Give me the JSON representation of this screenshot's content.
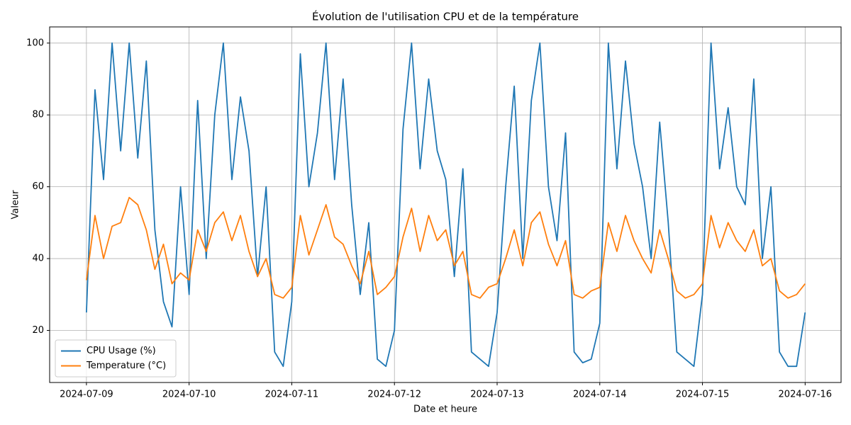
{
  "chart_data": {
    "type": "line",
    "title": "Évolution de l'utilisation CPU et de la température",
    "x_label": "Date et heure",
    "y_label": "Valeur",
    "x": [
      "2024-07-09T00:00",
      "2024-07-09T02:00",
      "2024-07-09T04:00",
      "2024-07-09T06:00",
      "2024-07-09T08:00",
      "2024-07-09T10:00",
      "2024-07-09T12:00",
      "2024-07-09T14:00",
      "2024-07-09T16:00",
      "2024-07-09T18:00",
      "2024-07-09T20:00",
      "2024-07-09T22:00",
      "2024-07-10T00:00",
      "2024-07-10T02:00",
      "2024-07-10T04:00",
      "2024-07-10T06:00",
      "2024-07-10T08:00",
      "2024-07-10T10:00",
      "2024-07-10T12:00",
      "2024-07-10T14:00",
      "2024-07-10T16:00",
      "2024-07-10T18:00",
      "2024-07-10T20:00",
      "2024-07-10T22:00",
      "2024-07-11T00:00",
      "2024-07-11T02:00",
      "2024-07-11T04:00",
      "2024-07-11T06:00",
      "2024-07-11T08:00",
      "2024-07-11T10:00",
      "2024-07-11T12:00",
      "2024-07-11T14:00",
      "2024-07-11T16:00",
      "2024-07-11T18:00",
      "2024-07-11T20:00",
      "2024-07-11T22:00",
      "2024-07-12T00:00",
      "2024-07-12T02:00",
      "2024-07-12T04:00",
      "2024-07-12T06:00",
      "2024-07-12T08:00",
      "2024-07-12T10:00",
      "2024-07-12T12:00",
      "2024-07-12T14:00",
      "2024-07-12T16:00",
      "2024-07-12T18:00",
      "2024-07-12T20:00",
      "2024-07-12T22:00",
      "2024-07-13T00:00",
      "2024-07-13T02:00",
      "2024-07-13T04:00",
      "2024-07-13T06:00",
      "2024-07-13T08:00",
      "2024-07-13T10:00",
      "2024-07-13T12:00",
      "2024-07-13T14:00",
      "2024-07-13T16:00",
      "2024-07-13T18:00",
      "2024-07-13T20:00",
      "2024-07-13T22:00",
      "2024-07-14T00:00",
      "2024-07-14T02:00",
      "2024-07-14T04:00",
      "2024-07-14T06:00",
      "2024-07-14T08:00",
      "2024-07-14T10:00",
      "2024-07-14T12:00",
      "2024-07-14T14:00",
      "2024-07-14T16:00",
      "2024-07-14T18:00",
      "2024-07-14T20:00",
      "2024-07-14T22:00",
      "2024-07-15T00:00",
      "2024-07-15T02:00",
      "2024-07-15T04:00",
      "2024-07-15T06:00",
      "2024-07-15T08:00",
      "2024-07-15T10:00",
      "2024-07-15T12:00",
      "2024-07-15T14:00",
      "2024-07-15T16:00",
      "2024-07-15T18:00",
      "2024-07-15T20:00",
      "2024-07-15T22:00",
      "2024-07-16T00:00"
    ],
    "series": [
      {
        "name": "CPU Usage (%)",
        "color": "#1f77b4",
        "values": [
          25,
          87,
          62,
          100,
          70,
          100,
          68,
          95,
          48,
          28,
          21,
          60,
          30,
          84,
          40,
          80,
          100,
          62,
          85,
          70,
          35,
          60,
          14,
          10,
          28,
          97,
          60,
          75,
          100,
          62,
          90,
          55,
          30,
          50,
          12,
          10,
          20,
          76,
          100,
          65,
          90,
          70,
          62,
          35,
          65,
          14,
          12,
          10,
          25,
          60,
          88,
          40,
          84,
          100,
          60,
          45,
          75,
          14,
          11,
          12,
          22,
          100,
          65,
          95,
          72,
          60,
          40,
          78,
          50,
          14,
          12,
          10,
          30,
          100,
          65,
          82,
          60,
          55,
          90,
          40,
          60,
          14,
          10,
          10,
          25
        ]
      },
      {
        "name": "Temperature (°C)",
        "color": "#ff7f0e",
        "values": [
          34,
          52,
          40,
          49,
          50,
          57,
          55,
          48,
          37,
          44,
          33,
          36,
          34,
          48,
          42,
          50,
          53,
          45,
          52,
          42,
          35,
          40,
          30,
          29,
          32,
          52,
          41,
          48,
          55,
          46,
          44,
          38,
          33,
          42,
          30,
          32,
          35,
          46,
          54,
          42,
          52,
          45,
          48,
          38,
          42,
          30,
          29,
          32,
          33,
          40,
          48,
          38,
          50,
          53,
          44,
          38,
          45,
          30,
          29,
          31,
          32,
          50,
          42,
          52,
          45,
          40,
          36,
          48,
          40,
          31,
          29,
          30,
          33,
          52,
          43,
          50,
          45,
          42,
          48,
          38,
          40,
          31,
          29,
          30,
          33
        ]
      }
    ],
    "xlim": [
      "2024-07-08T15:24",
      "2024-07-16T08:24"
    ],
    "xticks": [
      "2024-07-09",
      "2024-07-10",
      "2024-07-11",
      "2024-07-12",
      "2024-07-13",
      "2024-07-14",
      "2024-07-15",
      "2024-07-16"
    ],
    "ylim": [
      5.5,
      104.5
    ],
    "yticks": [
      20,
      40,
      60,
      80,
      100
    ],
    "grid": true,
    "legend": "lower left"
  }
}
